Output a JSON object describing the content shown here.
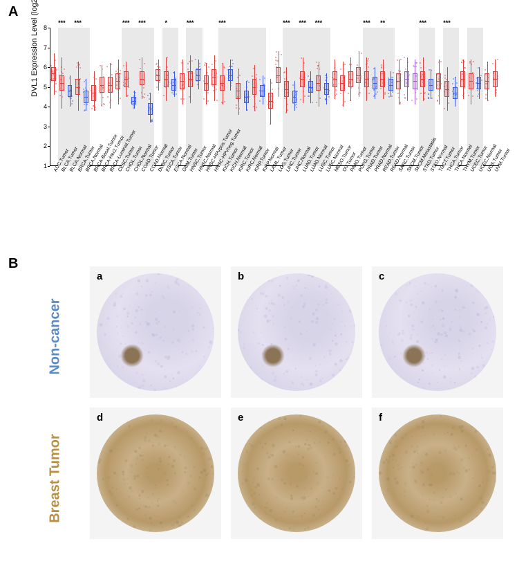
{
  "panelA": {
    "label": "A",
    "y_axis_title": "DVL1 Expression Level (log2 TPM)",
    "ylim": [
      1,
      8
    ],
    "yticks": [
      1,
      2,
      3,
      4,
      5,
      6,
      7,
      8
    ],
    "chart_bg": "#ffffff",
    "shade_bg": "#e9e9e9",
    "tumor_color": "#e73c3c",
    "normal_color": "#3c5ce7",
    "metastasis_color": "#9b59d6",
    "label_fontsize": 7,
    "sig_fontsize": 9,
    "groups": [
      {
        "name": "ACC.Tumor",
        "median": 5.7,
        "q1": 5.3,
        "q3": 6.0,
        "lo": 4.6,
        "hi": 6.7,
        "type": "T",
        "shade": false
      },
      {
        "name": "BLCA.Tumor",
        "median": 5.2,
        "q1": 4.8,
        "q3": 5.6,
        "lo": 3.9,
        "hi": 6.5,
        "type": "T",
        "sig": "***",
        "shade": true
      },
      {
        "name": "BLCA.Normal",
        "median": 4.8,
        "q1": 4.5,
        "q3": 5.1,
        "lo": 4.0,
        "hi": 5.6,
        "type": "N",
        "shade": true
      },
      {
        "name": "BRCA.Tumor",
        "median": 5.0,
        "q1": 4.6,
        "q3": 5.4,
        "lo": 3.8,
        "hi": 6.3,
        "type": "T",
        "sig": "***",
        "shade": true
      },
      {
        "name": "BRCA.Normal",
        "median": 4.5,
        "q1": 4.2,
        "q3": 4.8,
        "lo": 3.8,
        "hi": 5.4,
        "type": "N",
        "shade": true
      },
      {
        "name": "BRCA-Basal.Tumor",
        "median": 4.7,
        "q1": 4.3,
        "q3": 5.1,
        "lo": 3.8,
        "hi": 5.8,
        "type": "T",
        "shade": false
      },
      {
        "name": "BRCA-Her2.Tumor",
        "median": 5.1,
        "q1": 4.7,
        "q3": 5.5,
        "lo": 4.0,
        "hi": 6.1,
        "type": "T",
        "shade": false
      },
      {
        "name": "BRCA-Luminal.Tumor",
        "median": 5.1,
        "q1": 4.7,
        "q3": 5.5,
        "lo": 3.9,
        "hi": 6.2,
        "type": "T",
        "shade": false
      },
      {
        "name": "CESC.Tumor",
        "median": 5.3,
        "q1": 4.9,
        "q3": 5.7,
        "lo": 4.1,
        "hi": 6.4,
        "type": "T",
        "shade": false
      },
      {
        "name": "CHOL.Tumor",
        "median": 5.4,
        "q1": 5.0,
        "q3": 5.8,
        "lo": 4.5,
        "hi": 6.3,
        "type": "T",
        "sig": "***",
        "shade": true
      },
      {
        "name": "CHOL.Normal",
        "median": 4.3,
        "q1": 4.1,
        "q3": 4.5,
        "lo": 3.9,
        "hi": 4.8,
        "type": "N",
        "shade": true
      },
      {
        "name": "COAD.Tumor",
        "median": 5.4,
        "q1": 5.1,
        "q3": 5.8,
        "lo": 4.4,
        "hi": 6.5,
        "type": "T",
        "sig": "***",
        "shade": true
      },
      {
        "name": "COAD.Normal",
        "median": 3.9,
        "q1": 3.6,
        "q3": 4.2,
        "lo": 3.2,
        "hi": 4.7,
        "type": "N",
        "shade": true
      },
      {
        "name": "DLBC.Tumor",
        "median": 5.6,
        "q1": 5.3,
        "q3": 5.9,
        "lo": 4.8,
        "hi": 6.4,
        "type": "T",
        "shade": false
      },
      {
        "name": "ESCA.Tumor",
        "median": 5.4,
        "q1": 5.0,
        "q3": 5.8,
        "lo": 4.3,
        "hi": 6.5,
        "type": "T",
        "sig": "*",
        "shade": true
      },
      {
        "name": "ESCA.Normal",
        "median": 5.1,
        "q1": 4.8,
        "q3": 5.4,
        "lo": 4.5,
        "hi": 5.8,
        "type": "N",
        "shade": true
      },
      {
        "name": "GBM.Tumor",
        "median": 5.3,
        "q1": 4.9,
        "q3": 5.7,
        "lo": 4.1,
        "hi": 6.4,
        "type": "T",
        "shade": false
      },
      {
        "name": "HNSC.Tumor",
        "median": 5.4,
        "q1": 5.0,
        "q3": 5.8,
        "lo": 4.2,
        "hi": 6.6,
        "type": "T",
        "sig": "***",
        "shade": true
      },
      {
        "name": "HNSC.Normal",
        "median": 5.6,
        "q1": 5.3,
        "q3": 5.9,
        "lo": 4.9,
        "hi": 6.4,
        "type": "N",
        "shade": true
      },
      {
        "name": "HNSC-HPVpos.Tumor",
        "median": 5.2,
        "q1": 4.8,
        "q3": 5.6,
        "lo": 4.1,
        "hi": 6.2,
        "type": "T",
        "shade": false
      },
      {
        "name": "HNSC-HPVneg.Tumor",
        "median": 5.5,
        "q1": 5.1,
        "q3": 5.9,
        "lo": 4.3,
        "hi": 6.6,
        "type": "T",
        "shade": false
      },
      {
        "name": "KICH.Tumor",
        "median": 5.2,
        "q1": 4.8,
        "q3": 5.6,
        "lo": 4.1,
        "hi": 6.2,
        "type": "T",
        "sig": "***",
        "shade": true
      },
      {
        "name": "KICH.Normal",
        "median": 5.6,
        "q1": 5.3,
        "q3": 5.9,
        "lo": 4.8,
        "hi": 6.4,
        "type": "N",
        "shade": true
      },
      {
        "name": "KIRC.Tumor",
        "median": 4.8,
        "q1": 4.4,
        "q3": 5.2,
        "lo": 3.6,
        "hi": 5.9,
        "type": "T",
        "shade": true
      },
      {
        "name": "KIRC.Normal",
        "median": 4.5,
        "q1": 4.2,
        "q3": 4.8,
        "lo": 3.8,
        "hi": 5.3,
        "type": "N",
        "shade": true
      },
      {
        "name": "KIRP.Tumor",
        "median": 5.0,
        "q1": 4.6,
        "q3": 5.4,
        "lo": 3.8,
        "hi": 6.1,
        "type": "T",
        "shade": true
      },
      {
        "name": "KIRP.Normal",
        "median": 4.8,
        "q1": 4.5,
        "q3": 5.1,
        "lo": 4.1,
        "hi": 5.6,
        "type": "N",
        "shade": true
      },
      {
        "name": "LAML.Tumor",
        "median": 4.3,
        "q1": 3.9,
        "q3": 4.7,
        "lo": 3.1,
        "hi": 5.4,
        "type": "T",
        "shade": false
      },
      {
        "name": "LGG.Tumor",
        "median": 5.6,
        "q1": 5.2,
        "q3": 6.0,
        "lo": 4.5,
        "hi": 6.8,
        "type": "T",
        "shade": false
      },
      {
        "name": "LIHC.Tumor",
        "median": 4.9,
        "q1": 4.5,
        "q3": 5.3,
        "lo": 3.7,
        "hi": 6.0,
        "type": "T",
        "sig": "***",
        "shade": true
      },
      {
        "name": "LIHC.Normal",
        "median": 4.5,
        "q1": 4.2,
        "q3": 4.8,
        "lo": 3.8,
        "hi": 5.3,
        "type": "N",
        "shade": true
      },
      {
        "name": "LUAD.Tumor",
        "median": 5.4,
        "q1": 5.0,
        "q3": 5.8,
        "lo": 4.2,
        "hi": 6.5,
        "type": "T",
        "sig": "***",
        "shade": true
      },
      {
        "name": "LUAD.Normal",
        "median": 5.0,
        "q1": 4.7,
        "q3": 5.3,
        "lo": 4.2,
        "hi": 5.8,
        "type": "N",
        "shade": true
      },
      {
        "name": "LUSC.Tumor",
        "median": 5.2,
        "q1": 4.8,
        "q3": 5.6,
        "lo": 4.0,
        "hi": 6.3,
        "type": "T",
        "sig": "***",
        "shade": true
      },
      {
        "name": "LUSC.Normal",
        "median": 4.9,
        "q1": 4.6,
        "q3": 5.2,
        "lo": 4.1,
        "hi": 5.7,
        "type": "N",
        "shade": true
      },
      {
        "name": "MESO.Tumor",
        "median": 5.4,
        "q1": 5.0,
        "q3": 5.8,
        "lo": 4.4,
        "hi": 6.4,
        "type": "T",
        "shade": false
      },
      {
        "name": "OV.Tumor",
        "median": 5.2,
        "q1": 4.8,
        "q3": 5.6,
        "lo": 4.0,
        "hi": 6.3,
        "type": "T",
        "shade": false
      },
      {
        "name": "PAAD.Tumor",
        "median": 5.4,
        "q1": 5.0,
        "q3": 5.8,
        "lo": 4.3,
        "hi": 6.5,
        "type": "T",
        "shade": false
      },
      {
        "name": "PCPG.Tumor",
        "median": 5.6,
        "q1": 5.2,
        "q3": 6.0,
        "lo": 4.5,
        "hi": 6.8,
        "type": "T",
        "shade": false
      },
      {
        "name": "PRAD.Tumor",
        "median": 5.4,
        "q1": 5.0,
        "q3": 5.8,
        "lo": 4.3,
        "hi": 6.5,
        "type": "T",
        "sig": "***",
        "shade": true
      },
      {
        "name": "PRAD.Normal",
        "median": 5.2,
        "q1": 4.9,
        "q3": 5.5,
        "lo": 4.4,
        "hi": 6.0,
        "type": "N",
        "shade": true
      },
      {
        "name": "READ.Tumor",
        "median": 5.4,
        "q1": 5.0,
        "q3": 5.8,
        "lo": 4.4,
        "hi": 6.4,
        "type": "T",
        "sig": "**",
        "shade": true
      },
      {
        "name": "READ.Normal",
        "median": 5.1,
        "q1": 4.8,
        "q3": 5.4,
        "lo": 4.5,
        "hi": 5.8,
        "type": "N",
        "shade": true
      },
      {
        "name": "SARC.Tumor",
        "median": 5.3,
        "q1": 4.9,
        "q3": 5.7,
        "lo": 4.1,
        "hi": 6.4,
        "type": "T",
        "shade": false
      },
      {
        "name": "SKCM.Tumor",
        "median": 5.4,
        "q1": 5.0,
        "q3": 5.8,
        "lo": 4.3,
        "hi": 6.5,
        "type": "M",
        "shade": false
      },
      {
        "name": "SKCM.Metastasis",
        "median": 5.3,
        "q1": 4.9,
        "q3": 5.7,
        "lo": 4.1,
        "hi": 6.4,
        "type": "M",
        "shade": false
      },
      {
        "name": "STAD.Tumor",
        "median": 5.4,
        "q1": 5.0,
        "q3": 5.8,
        "lo": 4.3,
        "hi": 6.5,
        "type": "T",
        "sig": "***",
        "shade": true
      },
      {
        "name": "STAD.Normal",
        "median": 5.1,
        "q1": 4.8,
        "q3": 5.4,
        "lo": 4.4,
        "hi": 5.9,
        "type": "N",
        "shade": true
      },
      {
        "name": "TGCT.Tumor",
        "median": 5.3,
        "q1": 4.9,
        "q3": 5.7,
        "lo": 4.1,
        "hi": 6.4,
        "type": "T",
        "shade": false
      },
      {
        "name": "THCA.Tumor",
        "median": 4.9,
        "q1": 4.5,
        "q3": 5.3,
        "lo": 3.8,
        "hi": 6.0,
        "type": "T",
        "sig": "***",
        "shade": true
      },
      {
        "name": "THCA.Normal",
        "median": 4.7,
        "q1": 4.4,
        "q3": 5.0,
        "lo": 4.0,
        "hi": 5.5,
        "type": "N",
        "shade": true
      },
      {
        "name": "THYM.Tumor",
        "median": 5.4,
        "q1": 5.0,
        "q3": 5.8,
        "lo": 4.4,
        "hi": 6.4,
        "type": "T",
        "shade": false
      },
      {
        "name": "UCEC.Tumor",
        "median": 5.3,
        "q1": 4.9,
        "q3": 5.7,
        "lo": 4.1,
        "hi": 6.4,
        "type": "T",
        "shade": true
      },
      {
        "name": "UCEC.Normal",
        "median": 5.2,
        "q1": 4.9,
        "q3": 5.5,
        "lo": 4.4,
        "hi": 6.0,
        "type": "N",
        "shade": true
      },
      {
        "name": "UCS.Tumor",
        "median": 5.3,
        "q1": 4.9,
        "q3": 5.7,
        "lo": 4.3,
        "hi": 6.3,
        "type": "T",
        "shade": false
      },
      {
        "name": "UVM.Tumor",
        "median": 5.4,
        "q1": 5.0,
        "q3": 5.8,
        "lo": 4.5,
        "hi": 6.4,
        "type": "T",
        "shade": false
      }
    ]
  },
  "panelB": {
    "label": "B",
    "row1_label": "Non-cancer",
    "row1_color": "#5b8bc4",
    "row2_label": "Breast Tumor",
    "row2_color": "#b89040",
    "tile_bg": "#f4f4f4",
    "nc_color_base": "#d8d4e8",
    "bt_color_base": "#b89968",
    "tiles": [
      {
        "sub": "a",
        "row": "nc"
      },
      {
        "sub": "b",
        "row": "nc"
      },
      {
        "sub": "c",
        "row": "nc"
      },
      {
        "sub": "d",
        "row": "bt"
      },
      {
        "sub": "e",
        "row": "bt"
      },
      {
        "sub": "f",
        "row": "bt"
      }
    ]
  }
}
